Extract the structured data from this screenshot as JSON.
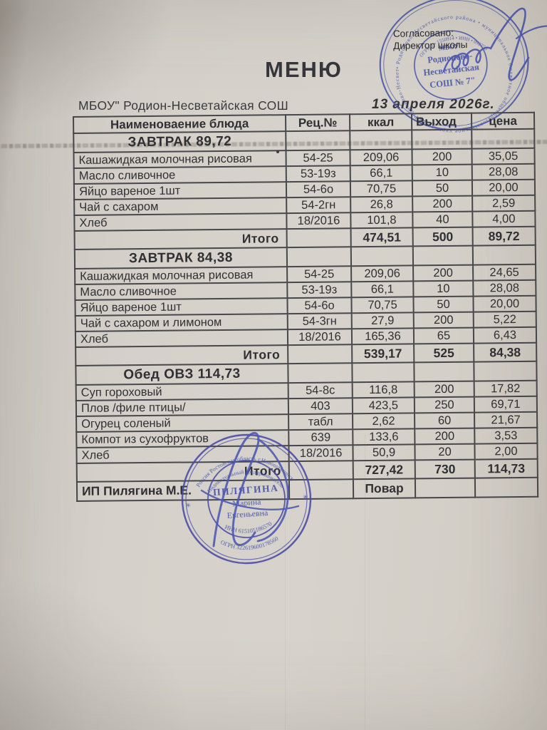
{
  "page": {
    "title": "МЕНЮ",
    "org_name": "МБОУ\" Родион-Несветайская  СОШ",
    "date": "13  апреля   2026г.",
    "approval_line1": "Согласовано:",
    "approval_line2": "Директор школы"
  },
  "colors": {
    "stamp_blue": "#4350a6",
    "signature_blue": "#4d57b2",
    "ink": "#303034",
    "paper": "#d5d1ca"
  },
  "table": {
    "headers": [
      "Наименоваение блюда",
      "Рец.№",
      "ккал",
      "Выход",
      "цена"
    ],
    "sections": [
      {
        "title": "ЗАВТРАК 89,72",
        "rows": [
          [
            "Кашажидкая молочная рисовая",
            "54-25",
            "209,06",
            "200",
            "35,05"
          ],
          [
            "Масло сливочное",
            "53-19з",
            "66,1",
            "10",
            "28,08"
          ],
          [
            "Яйцо вареное 1шт",
            "54-6о",
            "70,75",
            "50",
            "20,00"
          ],
          [
            "Чай с сахаром",
            "54-2гн",
            "26,8",
            "200",
            "2,59"
          ],
          [
            "Хлеб",
            "18/2016",
            "101,8",
            "40",
            "4,00"
          ]
        ],
        "total": [
          "Итого",
          "",
          "474,51",
          "500",
          "89,72"
        ]
      },
      {
        "title": "ЗАВТРАК 84,38",
        "rows": [
          [
            "Кашажидкая молочная рисовая",
            "54-25",
            "209,06",
            "200",
            "24,65"
          ],
          [
            "Масло сливочное",
            "53-19з",
            "66,1",
            "10",
            "28,08"
          ],
          [
            "Яйцо вареное 1шт",
            "54-6о",
            "70,75",
            "50",
            "20,00"
          ],
          [
            "Чай с сахаром и лимоном",
            "54-3гн",
            "27,9",
            "200",
            "5,22"
          ],
          [
            "Хлеб",
            "18/2016",
            "165,36",
            "65",
            "6,43"
          ]
        ],
        "total": [
          "Итого",
          "",
          "539,17",
          "525",
          "84,38"
        ]
      },
      {
        "title": "Обед ОВЗ 114,73",
        "rows": [
          [
            "Суп гороховый",
            "54-8с",
            "116,8",
            "200",
            "17,82"
          ],
          [
            "Плов /филе птицы/",
            "403",
            "423,5",
            "250",
            "69,71"
          ],
          [
            "Огурец соленый",
            "табл",
            "2,62",
            "60",
            "21,67"
          ],
          [
            "Компот из сухофруктов",
            "639",
            "133,6",
            "200",
            "3,53"
          ],
          [
            "Хлеб",
            "18/2016",
            "50,9",
            "20",
            "2,00"
          ]
        ],
        "total": [
          "Итого",
          "",
          "727,42",
          "730",
          "114,73"
        ]
      }
    ],
    "footer": [
      "ИП Пилягина М.Е.",
      "",
      "Повар",
      "",
      ""
    ]
  },
  "top_stamp": {
    "ring_text": "• Родионово-Несветайского района • муниципальное бюджетное общеобразовательное учреждение Родионово-Несветайская средняя школа •",
    "inner_arc": "ОГРН 1  •  1550914  •  ИНН  •  092750",
    "center_line1": "МБОУ",
    "center_line2": "Родионово-",
    "center_line3": "Несветайская",
    "center_line4": "СОШ № 7\""
  },
  "bottom_stamp": {
    "ring_top": "Россия Ростовская область г.Новошахтинск",
    "ring_inner": "Индивидуальный предприниматель",
    "center_line1": "ПИЛЯГИНА",
    "center_line2": "Марина",
    "center_line3": "Евгеньевна",
    "arc_inn": "ИНН 615105186570",
    "arc_ogrn": "ОГРН 322619600178560",
    "star_left": "✳",
    "star_right": "✳"
  }
}
